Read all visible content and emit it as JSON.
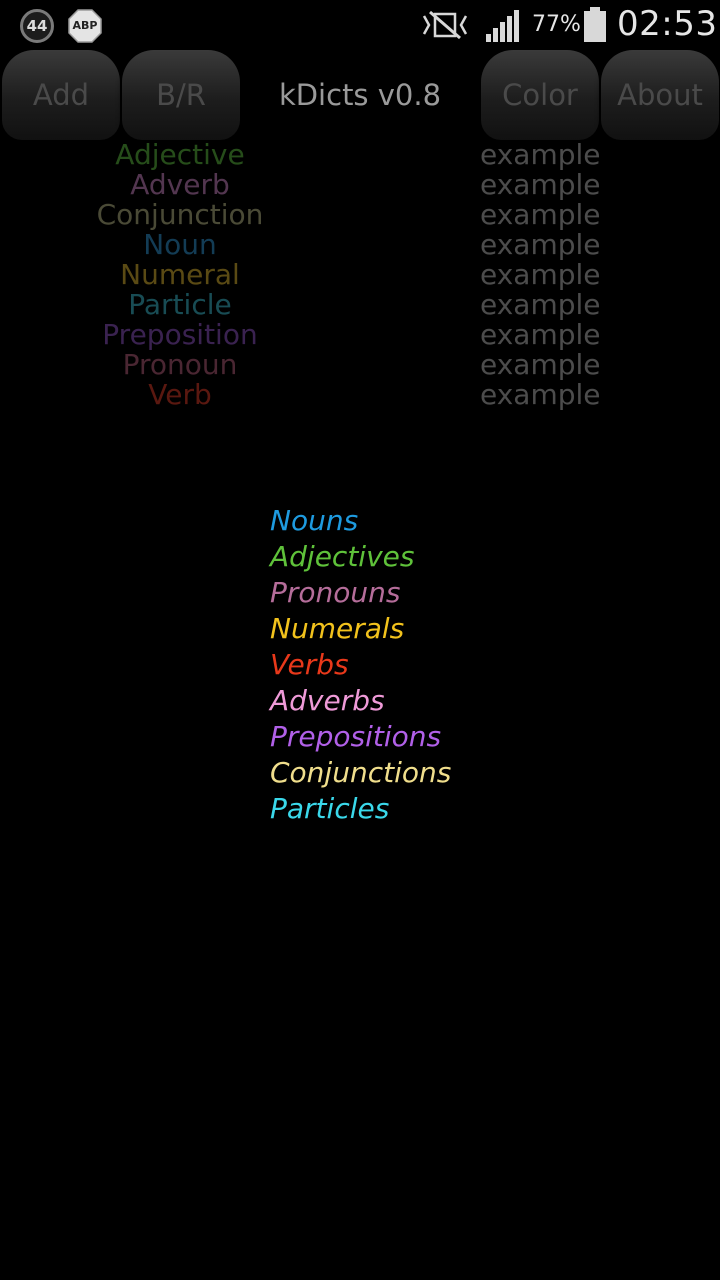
{
  "status_bar": {
    "notification_count": "44",
    "adblock_label": "ABP",
    "battery_percent": "77%",
    "clock": "02:53",
    "icons": [
      "notification-count-icon",
      "adblock-icon",
      "mute-icon",
      "signal-icon",
      "battery-icon"
    ]
  },
  "action_bar": {
    "add_label": "Add",
    "br_label": "B/R",
    "title": "kDicts v0.8",
    "color_label": "Color",
    "about_label": "About"
  },
  "legend": {
    "rows": [
      {
        "name": "Adjective",
        "example": "example",
        "color": "#264d1a"
      },
      {
        "name": "Adverb",
        "example": "example",
        "color": "#533650"
      },
      {
        "name": "Conjunction",
        "example": "example",
        "color": "#4a4a36"
      },
      {
        "name": "Noun",
        "example": "example",
        "color": "#133c55"
      },
      {
        "name": "Numeral",
        "example": "example",
        "color": "#5a4a14"
      },
      {
        "name": "Particle",
        "example": "example",
        "color": "#184c54"
      },
      {
        "name": "Preposition",
        "example": "example",
        "color": "#3a2250"
      },
      {
        "name": "Pronoun",
        "example": "example",
        "color": "#4a2632"
      },
      {
        "name": "Verb",
        "example": "example",
        "color": "#5a1810"
      }
    ]
  },
  "dictionaries": {
    "items": [
      {
        "label": "Nouns",
        "color": "#1e9be0"
      },
      {
        "label": "Adjectives",
        "color": "#5fc23a"
      },
      {
        "label": "Pronouns",
        "color": "#b56d9a"
      },
      {
        "label": "Numerals",
        "color": "#f2c21c"
      },
      {
        "label": "Verbs",
        "color": "#e8381a"
      },
      {
        "label": "Adverbs",
        "color": "#ef9ad8"
      },
      {
        "label": "Prepositions",
        "color": "#b160e8"
      },
      {
        "label": "Conjunctions",
        "color": "#f0de8c"
      },
      {
        "label": "Particles",
        "color": "#3ad8ea"
      }
    ]
  }
}
